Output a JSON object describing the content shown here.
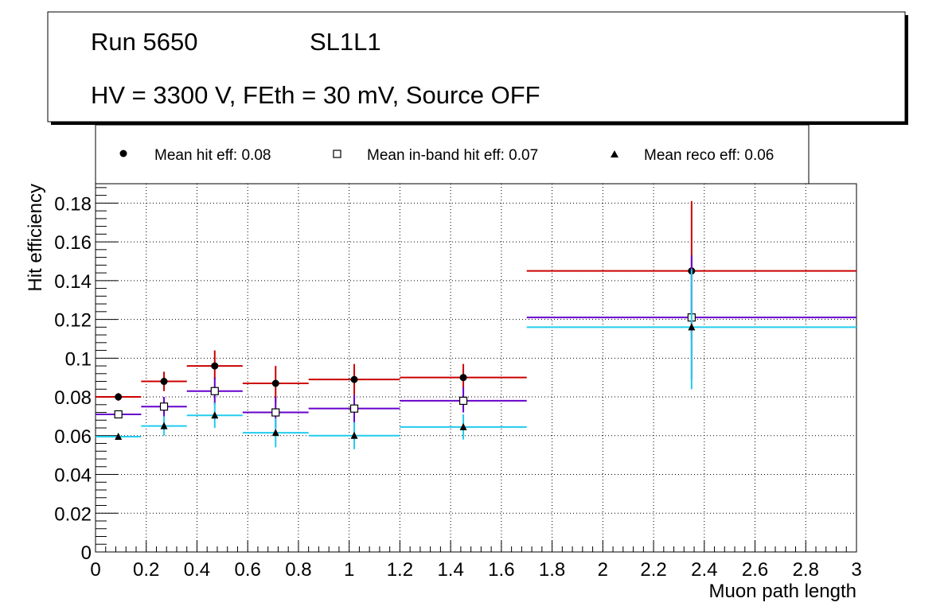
{
  "chart_data": {
    "type": "scatter",
    "title_lines": [
      "Run 5650",
      "SL1L1",
      "HV = 3300 V, FEth = 30 mV, Source OFF"
    ],
    "xlabel": "Muon path length",
    "ylabel": "Hit efficiency",
    "xlim": [
      0,
      3
    ],
    "ylim": [
      0,
      0.19
    ],
    "xticks": [
      "0",
      "0.2",
      "0.4",
      "0.6",
      "0.8",
      "1",
      "1.2",
      "1.4",
      "1.6",
      "1.8",
      "2",
      "2.2",
      "2.4",
      "2.6",
      "2.8",
      "3"
    ],
    "yticks": [
      "0",
      "0.02",
      "0.04",
      "0.06",
      "0.08",
      "0.1",
      "0.12",
      "0.14",
      "0.16",
      "0.18"
    ],
    "grid": true,
    "legend": {
      "position": "top",
      "entries": [
        {
          "label": "Mean hit  eff: 0.08",
          "marker": "circle"
        },
        {
          "label": "Mean in-band hit eff: 0.07",
          "marker": "open-square"
        },
        {
          "label": "Mean reco eff: 0.06",
          "marker": "triangle"
        }
      ]
    },
    "series": [
      {
        "name": "Mean hit  eff: 0.08",
        "color": "#cc0000",
        "marker": "circle",
        "points": [
          {
            "x": 0.09,
            "xlo": 0.0,
            "xhi": 0.18,
            "y": 0.08,
            "ylo": 0.078,
            "yhi": 0.082
          },
          {
            "x": 0.27,
            "xlo": 0.18,
            "xhi": 0.36,
            "y": 0.088,
            "ylo": 0.083,
            "yhi": 0.093
          },
          {
            "x": 0.47,
            "xlo": 0.36,
            "xhi": 0.58,
            "y": 0.096,
            "ylo": 0.089,
            "yhi": 0.104
          },
          {
            "x": 0.71,
            "xlo": 0.58,
            "xhi": 0.84,
            "y": 0.087,
            "ylo": 0.077,
            "yhi": 0.096
          },
          {
            "x": 1.02,
            "xlo": 0.84,
            "xhi": 1.2,
            "y": 0.089,
            "ylo": 0.081,
            "yhi": 0.097
          },
          {
            "x": 1.45,
            "xlo": 1.2,
            "xhi": 1.7,
            "y": 0.09,
            "ylo": 0.083,
            "yhi": 0.097
          },
          {
            "x": 2.35,
            "xlo": 1.7,
            "xhi": 3.0,
            "y": 0.145,
            "ylo": 0.11,
            "yhi": 0.181
          }
        ]
      },
      {
        "name": "Mean in-band hit eff: 0.07",
        "color": "#6600cc",
        "marker": "open-square",
        "points": [
          {
            "x": 0.09,
            "xlo": 0.0,
            "xhi": 0.18,
            "y": 0.071,
            "ylo": 0.069,
            "yhi": 0.073
          },
          {
            "x": 0.27,
            "xlo": 0.18,
            "xhi": 0.36,
            "y": 0.075,
            "ylo": 0.07,
            "yhi": 0.08
          },
          {
            "x": 0.47,
            "xlo": 0.36,
            "xhi": 0.58,
            "y": 0.083,
            "ylo": 0.076,
            "yhi": 0.09
          },
          {
            "x": 0.71,
            "xlo": 0.58,
            "xhi": 0.84,
            "y": 0.072,
            "ylo": 0.064,
            "yhi": 0.08
          },
          {
            "x": 1.02,
            "xlo": 0.84,
            "xhi": 1.2,
            "y": 0.074,
            "ylo": 0.066,
            "yhi": 0.081
          },
          {
            "x": 1.45,
            "xlo": 1.2,
            "xhi": 1.7,
            "y": 0.078,
            "ylo": 0.072,
            "yhi": 0.085
          },
          {
            "x": 2.35,
            "xlo": 1.7,
            "xhi": 3.0,
            "y": 0.121,
            "ylo": 0.089,
            "yhi": 0.153
          }
        ]
      },
      {
        "name": "Mean reco eff: 0.06",
        "color": "#22ccee",
        "marker": "triangle",
        "points": [
          {
            "x": 0.09,
            "xlo": 0.0,
            "xhi": 0.18,
            "y": 0.0595,
            "ylo": 0.058,
            "yhi": 0.061
          },
          {
            "x": 0.27,
            "xlo": 0.18,
            "xhi": 0.36,
            "y": 0.065,
            "ylo": 0.06,
            "yhi": 0.07
          },
          {
            "x": 0.47,
            "xlo": 0.36,
            "xhi": 0.58,
            "y": 0.0705,
            "ylo": 0.064,
            "yhi": 0.077
          },
          {
            "x": 0.71,
            "xlo": 0.58,
            "xhi": 0.84,
            "y": 0.0615,
            "ylo": 0.054,
            "yhi": 0.069
          },
          {
            "x": 1.02,
            "xlo": 0.84,
            "xhi": 1.2,
            "y": 0.06,
            "ylo": 0.053,
            "yhi": 0.067
          },
          {
            "x": 1.45,
            "xlo": 1.2,
            "xhi": 1.7,
            "y": 0.0645,
            "ylo": 0.058,
            "yhi": 0.071
          },
          {
            "x": 2.35,
            "xlo": 1.7,
            "xhi": 3.0,
            "y": 0.116,
            "ylo": 0.084,
            "yhi": 0.146
          }
        ]
      }
    ]
  }
}
